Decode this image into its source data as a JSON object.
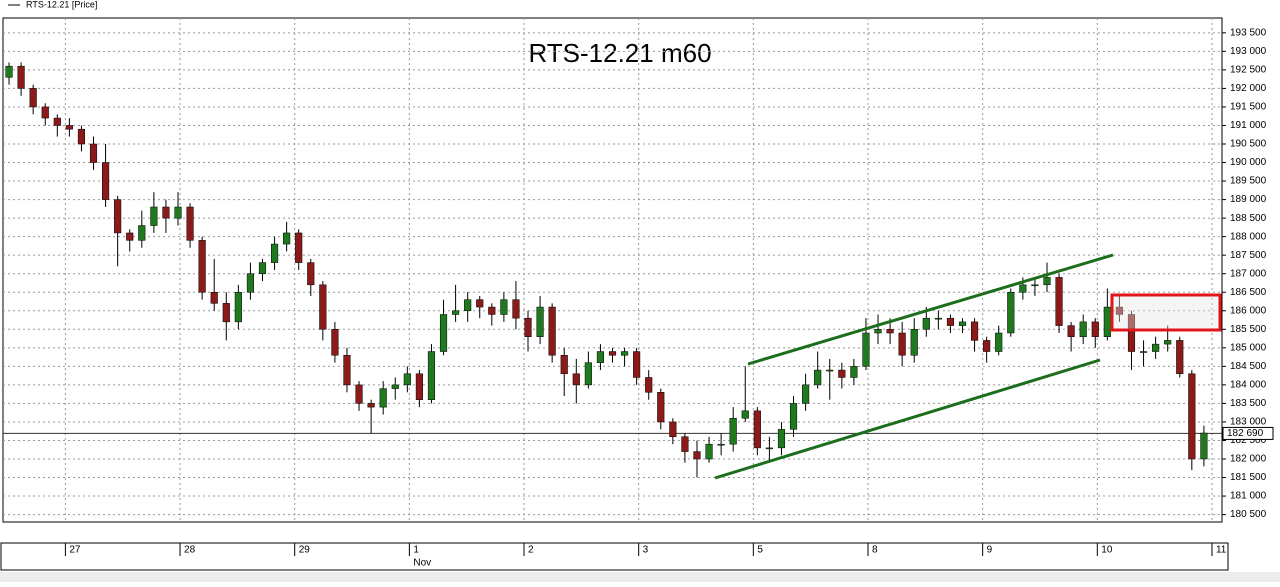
{
  "chart_data": {
    "type": "candlestick",
    "title": "RTS-12.21 m60",
    "legend": "RTS-12.21 [Price]",
    "up_color": "#1f7a1f",
    "down_color": "#8b1a1a",
    "grid": true,
    "xlim": [
      -0.5,
      100.5
    ],
    "xticks": [
      {
        "value": 5,
        "label": "27"
      },
      {
        "value": 14.5,
        "label": "28"
      },
      {
        "value": 24,
        "label": "29"
      },
      {
        "value": 33.5,
        "label": "1"
      },
      {
        "value": 43,
        "label": "2"
      },
      {
        "value": 52.5,
        "label": "3"
      },
      {
        "value": 62,
        "label": "5"
      },
      {
        "value": 71.5,
        "label": "8"
      },
      {
        "value": 81,
        "label": "9"
      },
      {
        "value": 90.5,
        "label": "10"
      },
      {
        "value": 100,
        "label": "11"
      }
    ],
    "month_label": "Nov",
    "ylim": [
      180300,
      193900
    ],
    "yticks": [
      {
        "value": 180500,
        "label": "180 500"
      },
      {
        "value": 181000,
        "label": "181 000"
      },
      {
        "value": 181500,
        "label": "181 500"
      },
      {
        "value": 182000,
        "label": "182 000"
      },
      {
        "value": 182500,
        "label": "182 500"
      },
      {
        "value": 183000,
        "label": "183 000"
      },
      {
        "value": 183500,
        "label": "183 500"
      },
      {
        "value": 184000,
        "label": "184 000"
      },
      {
        "value": 184500,
        "label": "184 500"
      },
      {
        "value": 185000,
        "label": "185 000"
      },
      {
        "value": 185500,
        "label": "185 500"
      },
      {
        "value": 186000,
        "label": "186 000"
      },
      {
        "value": 186500,
        "label": "186 500"
      },
      {
        "value": 187000,
        "label": "187 000"
      },
      {
        "value": 187500,
        "label": "187 500"
      },
      {
        "value": 188000,
        "label": "188 000"
      },
      {
        "value": 188500,
        "label": "188 500"
      },
      {
        "value": 189000,
        "label": "189 000"
      },
      {
        "value": 189500,
        "label": "189 500"
      },
      {
        "value": 190000,
        "label": "190 000"
      },
      {
        "value": 190500,
        "label": "190 500"
      },
      {
        "value": 191000,
        "label": "191 000"
      },
      {
        "value": 191500,
        "label": "191 500"
      },
      {
        "value": 192000,
        "label": "192 000"
      },
      {
        "value": 192500,
        "label": "192 500"
      },
      {
        "value": 193000,
        "label": "193 000"
      },
      {
        "value": 193500,
        "label": "193 500"
      }
    ],
    "last_price": {
      "value": 182690,
      "label": "182 690"
    },
    "ohlc": [
      [
        192300,
        192700,
        192100,
        192600
      ],
      [
        192600,
        192700,
        191800,
        192000
      ],
      [
        192000,
        192100,
        191300,
        191500
      ],
      [
        191500,
        191600,
        191000,
        191200
      ],
      [
        191200,
        191300,
        190700,
        191000
      ],
      [
        191000,
        191200,
        190700,
        190900
      ],
      [
        190900,
        191000,
        190300,
        190500
      ],
      [
        190500,
        190700,
        189800,
        190000
      ],
      [
        190000,
        190500,
        188800,
        189000
      ],
      [
        189000,
        189100,
        187200,
        188100
      ],
      [
        188100,
        188200,
        187600,
        187900
      ],
      [
        187900,
        188700,
        187700,
        188300
      ],
      [
        188300,
        189200,
        188100,
        188800
      ],
      [
        188800,
        189000,
        188100,
        188500
      ],
      [
        188500,
        189200,
        188300,
        188800
      ],
      [
        188800,
        188900,
        187700,
        187900
      ],
      [
        187900,
        188000,
        186300,
        186500
      ],
      [
        186500,
        187400,
        186000,
        186200
      ],
      [
        186200,
        186500,
        185200,
        185700
      ],
      [
        185700,
        186700,
        185500,
        186500
      ],
      [
        186500,
        187300,
        186300,
        187000
      ],
      [
        187000,
        187400,
        186800,
        187300
      ],
      [
        187300,
        188000,
        187100,
        187800
      ],
      [
        187800,
        188400,
        187600,
        188100
      ],
      [
        188100,
        188200,
        187100,
        187300
      ],
      [
        187300,
        187400,
        186400,
        186700
      ],
      [
        186700,
        186800,
        185200,
        185500
      ],
      [
        185500,
        185700,
        184600,
        184800
      ],
      [
        184800,
        185000,
        183800,
        184000
      ],
      [
        184000,
        184100,
        183300,
        183500
      ],
      [
        183500,
        183600,
        182700,
        183400
      ],
      [
        183400,
        184100,
        183200,
        183900
      ],
      [
        183900,
        184200,
        183600,
        184000
      ],
      [
        184000,
        184500,
        183800,
        184300
      ],
      [
        184300,
        184400,
        183400,
        183600
      ],
      [
        183600,
        185100,
        183500,
        184900
      ],
      [
        184900,
        186300,
        184800,
        185900
      ],
      [
        185900,
        186700,
        185700,
        186000
      ],
      [
        186000,
        186500,
        185700,
        186300
      ],
      [
        186300,
        186400,
        185800,
        186100
      ],
      [
        186100,
        186200,
        185600,
        185900
      ],
      [
        185900,
        186500,
        185700,
        186300
      ],
      [
        186300,
        186800,
        185500,
        185800
      ],
      [
        185800,
        186000,
        184900,
        185300
      ],
      [
        185300,
        186400,
        185100,
        186100
      ],
      [
        186100,
        186200,
        184600,
        184800
      ],
      [
        184800,
        185000,
        183700,
        184300
      ],
      [
        184300,
        184700,
        183500,
        184000
      ],
      [
        184000,
        184900,
        183900,
        184600
      ],
      [
        184600,
        185100,
        184400,
        184900
      ],
      [
        184900,
        185000,
        184600,
        184800
      ],
      [
        184800,
        185000,
        184500,
        184900
      ],
      [
        184900,
        185000,
        184000,
        184200
      ],
      [
        184200,
        184400,
        183600,
        183800
      ],
      [
        183800,
        183900,
        182800,
        183000
      ],
      [
        183000,
        183100,
        182400,
        182600
      ],
      [
        182600,
        182700,
        181900,
        182200
      ],
      [
        182200,
        182500,
        181500,
        182000
      ],
      [
        182000,
        182600,
        181900,
        182400
      ],
      [
        182400,
        182700,
        182100,
        182400
      ],
      [
        182400,
        183400,
        182200,
        183100
      ],
      [
        183100,
        184500,
        183000,
        183300
      ],
      [
        183300,
        183400,
        182100,
        182300
      ],
      [
        182300,
        182600,
        181900,
        182300
      ],
      [
        182300,
        183000,
        182100,
        182800
      ],
      [
        182800,
        183700,
        182600,
        183500
      ],
      [
        183500,
        184300,
        183300,
        184000
      ],
      [
        184000,
        184900,
        183900,
        184400
      ],
      [
        184400,
        184700,
        183600,
        184400
      ],
      [
        184400,
        184600,
        183900,
        184200
      ],
      [
        184200,
        184700,
        184000,
        184500
      ],
      [
        184500,
        185800,
        184400,
        185400
      ],
      [
        185400,
        185900,
        185100,
        185500
      ],
      [
        185500,
        185800,
        185100,
        185400
      ],
      [
        185400,
        185700,
        184500,
        184800
      ],
      [
        184800,
        185800,
        184600,
        185500
      ],
      [
        185500,
        186100,
        185300,
        185800
      ],
      [
        185800,
        186000,
        185500,
        185800
      ],
      [
        185800,
        185900,
        185400,
        185600
      ],
      [
        185600,
        185800,
        185400,
        185700
      ],
      [
        185700,
        185800,
        184900,
        185200
      ],
      [
        185200,
        185300,
        184600,
        184900
      ],
      [
        184900,
        185600,
        184800,
        185400
      ],
      [
        185400,
        186600,
        185300,
        186500
      ],
      [
        186500,
        186900,
        186300,
        186700
      ],
      [
        186700,
        186900,
        186400,
        186700
      ],
      [
        186700,
        187300,
        186500,
        186900
      ],
      [
        186900,
        187000,
        185400,
        185600
      ],
      [
        185600,
        185700,
        184900,
        185300
      ],
      [
        185300,
        185900,
        185100,
        185700
      ],
      [
        185700,
        185800,
        185000,
        185300
      ],
      [
        185300,
        186600,
        185200,
        186100
      ],
      [
        186100,
        186400,
        185700,
        185900
      ],
      [
        185900,
        186000,
        184400,
        184900
      ],
      [
        184900,
        185200,
        184500,
        184900
      ],
      [
        184900,
        185300,
        184700,
        185100
      ],
      [
        185100,
        185600,
        184900,
        185200
      ],
      [
        185200,
        185300,
        184200,
        184300
      ],
      [
        184300,
        184400,
        181700,
        182000
      ],
      [
        182000,
        182900,
        181800,
        182700
      ]
    ]
  }
}
